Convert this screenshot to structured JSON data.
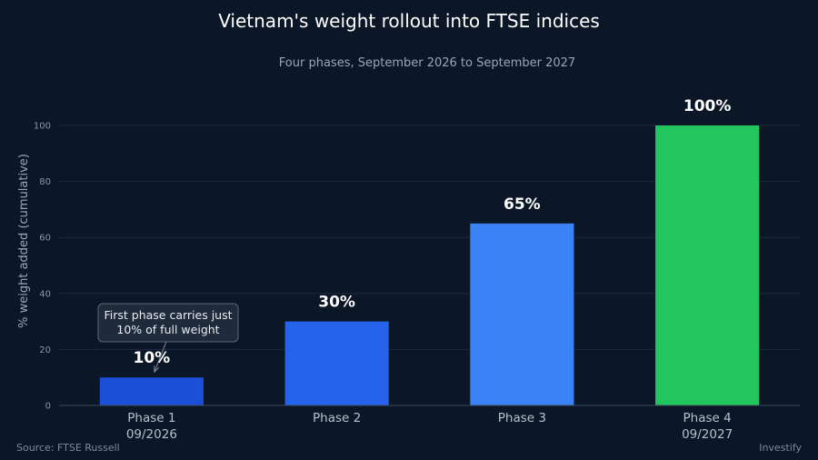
{
  "chart_data": {
    "type": "bar",
    "title": "Vietnam's weight rollout into FTSE indices",
    "subtitle": "Four phases, September 2026 to September 2027",
    "xlabel": "",
    "ylabel": "% weight added (cumulative)",
    "ylim": [
      0,
      100
    ],
    "yticks": [
      0,
      20,
      40,
      60,
      80,
      100
    ],
    "grid": true,
    "categories": [
      {
        "name": "Phase 1",
        "sub": "09/2026"
      },
      {
        "name": "Phase 2",
        "sub": ""
      },
      {
        "name": "Phase 3",
        "sub": ""
      },
      {
        "name": "Phase 4",
        "sub": "09/2027"
      }
    ],
    "values": [
      10,
      30,
      65,
      100
    ],
    "data_labels": [
      "10%",
      "30%",
      "65%",
      "100%"
    ],
    "colors": [
      "#1d4ed8",
      "#2563eb",
      "#3b82f6",
      "#22c55e"
    ],
    "annotation": {
      "lines": [
        "First phase carries just",
        "10% of full weight"
      ],
      "target_index": 0
    },
    "source": "Source: FTSE Russell",
    "credit": "Investify"
  }
}
